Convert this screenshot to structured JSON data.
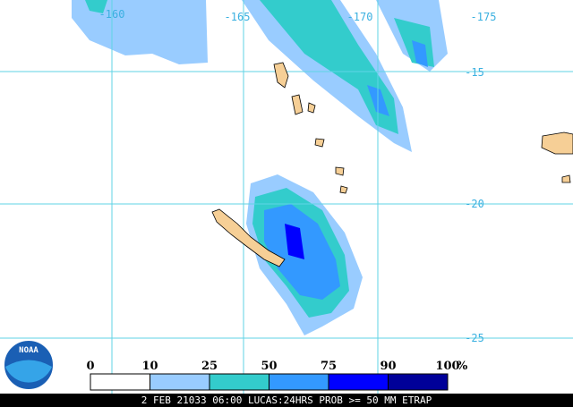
{
  "map": {
    "lon_labels": [
      "-160",
      "-165",
      "-170",
      "-175"
    ],
    "lat_labels": [
      "-15",
      "-20",
      "-25"
    ]
  },
  "legend": {
    "ticks": [
      "0",
      "10",
      "25",
      "50",
      "75",
      "90",
      "100"
    ],
    "unit": "%",
    "colors": [
      "#ffffff",
      "#99ccff",
      "#33cccc",
      "#3399ff",
      "#0000ff",
      "#000099"
    ]
  },
  "logo": "NOAA",
  "footer": "2 FEB 21033 06:00 LUCAS:24HRS PROB >= 50 MM ETRAP"
}
